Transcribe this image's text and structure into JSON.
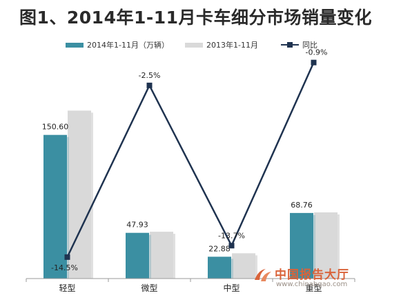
{
  "title": "图1、2014年1-11月卡车细分市场销量变化",
  "legend": {
    "s2014": "2014年1-11月（万辆）",
    "s2013": "2013年1-11月",
    "yoy": "同比"
  },
  "colors": {
    "s2014": "#3b8fa2",
    "s2013": "#d9d9d9",
    "yoy": "#1f3350"
  },
  "watermark": {
    "name": "中国报告大厅",
    "url": "www.chinabgao.com",
    "logo": "logo-icon"
  },
  "chart_data": {
    "type": "bar",
    "categories": [
      "轻型",
      "微型",
      "中型",
      "重型"
    ],
    "series": [
      {
        "name": "2014年1-11月（万辆）",
        "type": "bar",
        "values": [
          150.6,
          47.93,
          22.88,
          68.76
        ],
        "labels": [
          "150.60",
          "47.93",
          "22.88",
          "68.76"
        ]
      },
      {
        "name": "2013年1-11月",
        "type": "bar",
        "values": [
          176.1,
          49.1,
          26.5,
          69.4
        ]
      },
      {
        "name": "同比",
        "type": "line",
        "axis": "secondary",
        "values": [
          -14.5,
          -2.5,
          -13.7,
          -0.9
        ],
        "labels": [
          "-14.5%",
          "-2.5%",
          "-13.7%",
          "-0.9%"
        ]
      }
    ],
    "ylim": [
      0,
      240
    ],
    "y2lim": [
      -16,
      0
    ],
    "legend": "top",
    "grid": false
  }
}
